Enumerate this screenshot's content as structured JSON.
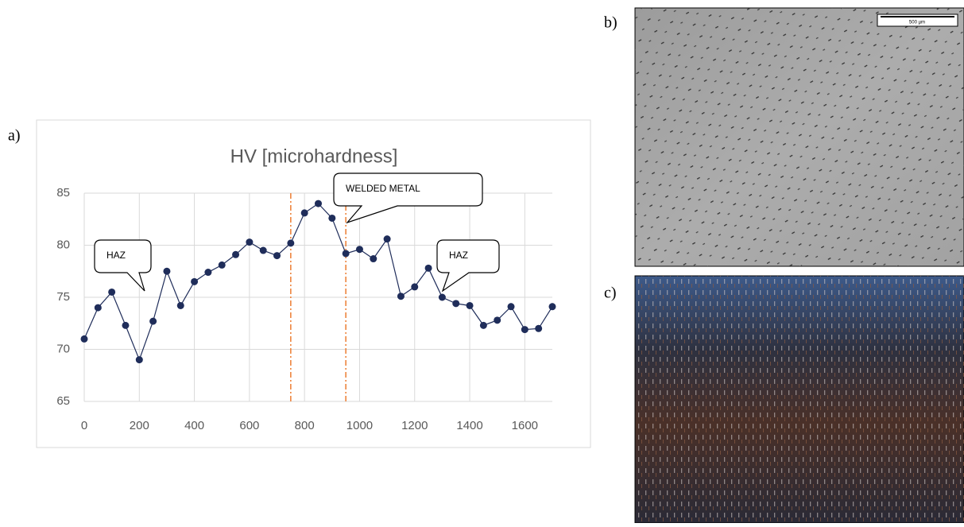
{
  "chart_data": {
    "type": "line",
    "title": "HV [microhardness]",
    "x": [
      0,
      50,
      100,
      150,
      200,
      250,
      300,
      350,
      400,
      450,
      500,
      550,
      600,
      650,
      700,
      750,
      800,
      850,
      900,
      950,
      1000,
      1050,
      1100,
      1150,
      1200,
      1250,
      1300,
      1350,
      1400,
      1450,
      1500,
      1550,
      1600,
      1650,
      1700
    ],
    "series": [
      {
        "color": "#1f2d5a",
        "values": [
          71,
          74,
          75.5,
          72.3,
          69,
          72.7,
          77.5,
          74.2,
          76.5,
          77.4,
          78.1,
          79.1,
          80.3,
          79.5,
          79,
          80.2,
          83.1,
          84,
          82.6,
          79.2,
          79.6,
          78.7,
          80.6,
          75.1,
          76,
          77.8,
          75,
          74.4,
          74.2,
          72.3,
          72.8,
          74.1,
          71.9,
          72,
          74.1
        ]
      }
    ],
    "xlim": [
      0,
      1700
    ],
    "xticks": [
      0,
      200,
      400,
      600,
      800,
      1000,
      1200,
      1400,
      1600
    ],
    "ylim": [
      65,
      85
    ],
    "yticks": [
      65,
      70,
      75,
      80,
      85
    ],
    "grid": true,
    "vlines": [
      750,
      950
    ],
    "vline_color": "#ed7d31",
    "annotations": [
      "HAZ",
      "WELDED METAL",
      "HAZ"
    ]
  },
  "figure": {
    "panel_labels": [
      "a)",
      "b)",
      "c)"
    ],
    "scale_bar": "500 µm"
  }
}
